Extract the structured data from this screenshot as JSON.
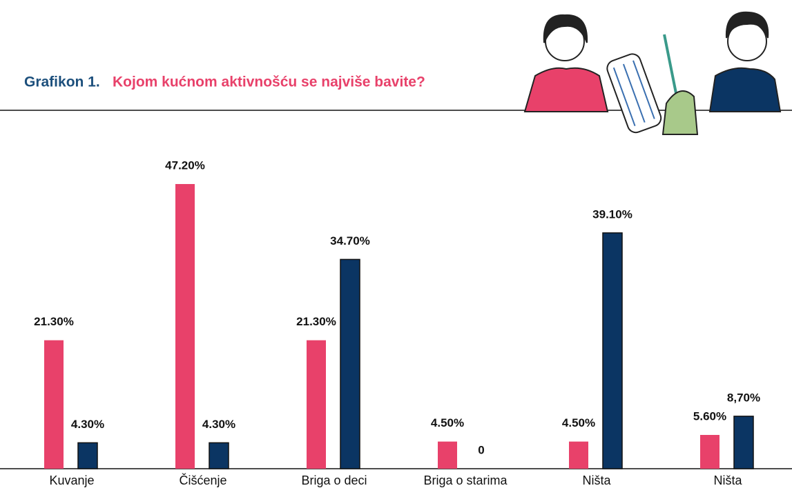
{
  "chart_data": {
    "type": "bar",
    "title_prefix": "Grafikon 1.",
    "title": "Kojom kućnom aktivnošću se najviše bavite?",
    "categories": [
      "Kuvanje",
      "Čišćenje",
      "Briga o deci",
      "Briga o starima",
      "Ništa",
      "Ništa"
    ],
    "series": [
      {
        "color": "#e8416a",
        "values": [
          21.3,
          47.2,
          21.3,
          4.5,
          4.5,
          5.6
        ],
        "value_labels": [
          "21.30%",
          "47.20%",
          "21.30%",
          "4.50%",
          "4.50%",
          "5.60%"
        ]
      },
      {
        "color": "#0b3563",
        "values": [
          4.3,
          4.3,
          34.7,
          0,
          39.1,
          8.7
        ],
        "value_labels": [
          "4.30%",
          "4.30%",
          "34.70%",
          "0",
          "39.10%",
          "8,70%"
        ]
      }
    ]
  }
}
